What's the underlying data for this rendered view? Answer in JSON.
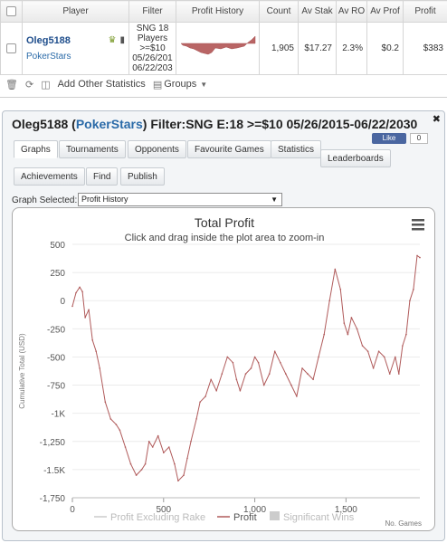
{
  "table": {
    "headers": [
      "Player",
      "Filter",
      "Profit History",
      "Count",
      "Av Stak",
      "Av RO",
      "Av Prof",
      "Profit"
    ],
    "row": {
      "player": "Oleg5188",
      "site": "PokerStars",
      "filter_lines": [
        "SNG 18",
        "Players",
        ">=$10",
        "05/26/201",
        "06/22/203"
      ],
      "count": "1,905",
      "av_stake": "$17.27",
      "av_roi": "2.3%",
      "av_profit": "$0.2",
      "profit": "$383"
    }
  },
  "toolbar": {
    "add_stats": "Add Other Statistics",
    "groups": "Groups"
  },
  "dialog": {
    "title_player": "Oleg5188",
    "title_open": "(",
    "title_site": "PokerStars",
    "title_close": ")",
    "title_filter": "Filter:SNG E:18 >=$10 05/26/2015-06/22/2030",
    "like": "Like",
    "like_count": "0",
    "tabs": [
      "Graphs",
      "Tournaments",
      "Opponents",
      "Favourite Games",
      "Statistics",
      "Leaderboards",
      "Achievements",
      "Find",
      "Publish"
    ],
    "graph_selected_label": "Graph Selected:",
    "graph_selected_value": "Profit History"
  },
  "colors": {
    "profit_line": "#b05a5a",
    "excl_rake_line": "#cccccc",
    "link_blue": "#2a6aa8"
  },
  "chart_data": {
    "type": "line",
    "title": "Total Profit",
    "subtitle": "Click and drag inside the plot area to zoom-in",
    "ylabel": "Cumulative Total (USD)",
    "xlabel": "No. Games",
    "xlim": [
      0,
      1905
    ],
    "ylim": [
      -1750,
      500
    ],
    "x_ticks": [
      0,
      500,
      1000,
      1500
    ],
    "x_tick_labels": [
      "0",
      "500",
      "1,000",
      "1,500"
    ],
    "y_ticks": [
      500,
      250,
      0,
      -250,
      -500,
      -750,
      -1000,
      -1250,
      -1500,
      -1750
    ],
    "y_tick_labels": [
      "500",
      "250",
      "0",
      "-250",
      "-500",
      "-750",
      "-1K",
      "-1,250",
      "-1.5K",
      "-1,750"
    ],
    "legend": [
      "Profit Excluding Rake",
      "Profit",
      "Significant Wins"
    ],
    "series": [
      {
        "name": "Profit",
        "x": [
          0,
          20,
          40,
          55,
          70,
          90,
          110,
          130,
          150,
          180,
          210,
          240,
          260,
          290,
          320,
          350,
          380,
          400,
          420,
          440,
          470,
          500,
          530,
          560,
          580,
          610,
          630,
          650,
          680,
          700,
          730,
          760,
          790,
          820,
          850,
          880,
          900,
          920,
          950,
          980,
          1000,
          1020,
          1050,
          1080,
          1110,
          1140,
          1170,
          1200,
          1230,
          1260,
          1290,
          1320,
          1350,
          1380,
          1410,
          1440,
          1470,
          1490,
          1510,
          1530,
          1560,
          1590,
          1620,
          1650,
          1680,
          1710,
          1740,
          1770,
          1790,
          1810,
          1830,
          1850,
          1870,
          1890,
          1905
        ],
        "y": [
          -50,
          70,
          120,
          80,
          -150,
          -80,
          -350,
          -450,
          -600,
          -900,
          -1050,
          -1100,
          -1150,
          -1300,
          -1450,
          -1550,
          -1500,
          -1450,
          -1250,
          -1300,
          -1200,
          -1350,
          -1300,
          -1450,
          -1600,
          -1550,
          -1400,
          -1250,
          -1050,
          -900,
          -850,
          -700,
          -800,
          -650,
          -500,
          -550,
          -700,
          -800,
          -650,
          -600,
          -500,
          -550,
          -750,
          -650,
          -450,
          -550,
          -650,
          -750,
          -850,
          -600,
          -650,
          -700,
          -500,
          -300,
          0,
          280,
          100,
          -200,
          -300,
          -150,
          -250,
          -400,
          -450,
          -600,
          -450,
          -500,
          -650,
          -500,
          -650,
          -400,
          -300,
          0,
          100,
          400,
          383
        ]
      }
    ]
  }
}
